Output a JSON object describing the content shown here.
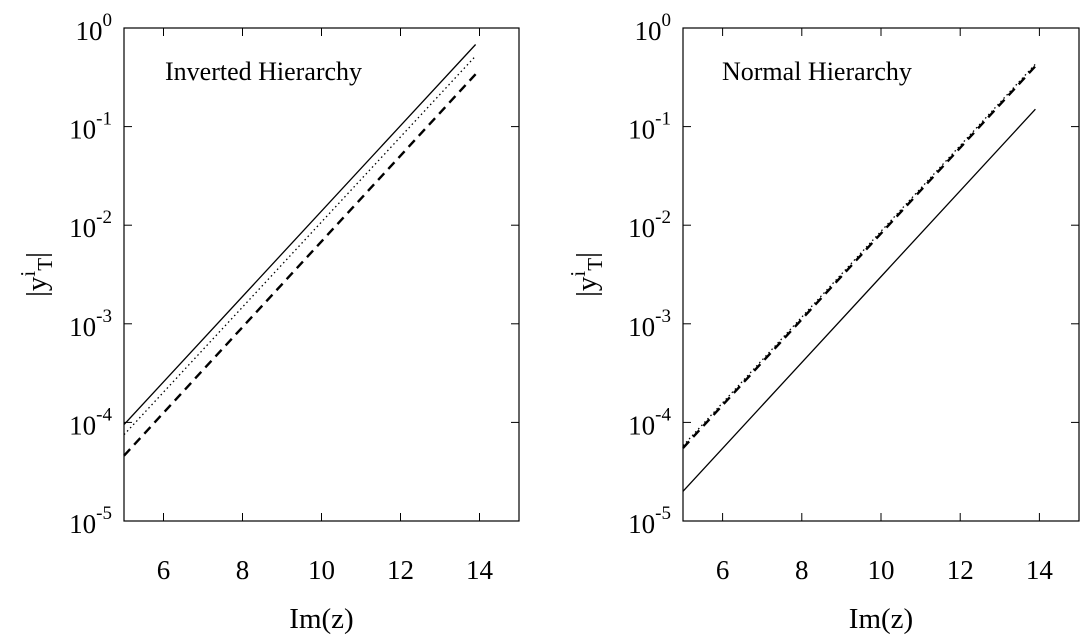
{
  "chart_data": [
    {
      "type": "line",
      "annotation": "Inverted Hierarchy",
      "xlabel": "Im(z)",
      "ylabel": {
        "base": "|y",
        "sup": "i",
        "sub": "T",
        "close": "|"
      },
      "xlim": [
        5,
        15
      ],
      "ylim": [
        1e-05,
        1
      ],
      "yscale": "log",
      "grid": false,
      "xticks": [
        {
          "value": 6,
          "label": "6"
        },
        {
          "value": 8,
          "label": "8"
        },
        {
          "value": 10,
          "label": "10"
        },
        {
          "value": 12,
          "label": "12"
        },
        {
          "value": 14,
          "label": "14"
        }
      ],
      "yticks": [
        {
          "value": 1e-05,
          "base": "10",
          "exp": "-5"
        },
        {
          "value": 0.0001,
          "base": "10",
          "exp": "-4"
        },
        {
          "value": 0.001,
          "base": "10",
          "exp": "-3"
        },
        {
          "value": 0.01,
          "base": "10",
          "exp": "-2"
        },
        {
          "value": 0.1,
          "base": "10",
          "exp": "-1"
        },
        {
          "value": 1,
          "base": "10",
          "exp": "0"
        }
      ],
      "series": [
        {
          "style": "solid",
          "x": [
            5,
            13.9
          ],
          "y": [
            9.5e-05,
            0.68
          ]
        },
        {
          "style": "dotted",
          "x": [
            5,
            13.9
          ],
          "y": [
            7.5e-05,
            0.52
          ]
        },
        {
          "style": "dashed",
          "x": [
            5,
            13.9
          ],
          "y": [
            4.6e-05,
            0.34
          ]
        }
      ]
    },
    {
      "type": "line",
      "annotation": "Normal Hierarchy",
      "xlabel": "Im(z)",
      "ylabel": {
        "base": "|y",
        "sup": "i",
        "sub": "T",
        "close": "|"
      },
      "xlim": [
        5,
        15
      ],
      "ylim": [
        1e-05,
        1
      ],
      "yscale": "log",
      "grid": false,
      "xticks": [
        {
          "value": 6,
          "label": "6"
        },
        {
          "value": 8,
          "label": "8"
        },
        {
          "value": 10,
          "label": "10"
        },
        {
          "value": 12,
          "label": "12"
        },
        {
          "value": 14,
          "label": "14"
        }
      ],
      "yticks": [
        {
          "value": 1e-05,
          "base": "10",
          "exp": "-5"
        },
        {
          "value": 0.0001,
          "base": "10",
          "exp": "-4"
        },
        {
          "value": 0.001,
          "base": "10",
          "exp": "-3"
        },
        {
          "value": 0.01,
          "base": "10",
          "exp": "-2"
        },
        {
          "value": 0.1,
          "base": "10",
          "exp": "-1"
        },
        {
          "value": 1,
          "base": "10",
          "exp": "0"
        }
      ],
      "series": [
        {
          "style": "solid",
          "x": [
            5,
            13.9
          ],
          "y": [
            2e-05,
            0.15
          ]
        },
        {
          "style": "dotted",
          "x": [
            5,
            13.9
          ],
          "y": [
            5.8e-05,
            0.43
          ]
        },
        {
          "style": "dashed",
          "x": [
            5,
            13.9
          ],
          "y": [
            5.5e-05,
            0.41
          ]
        }
      ]
    }
  ]
}
